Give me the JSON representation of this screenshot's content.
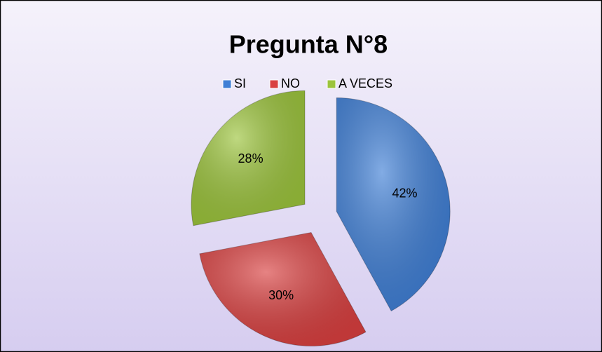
{
  "chart_data": {
    "type": "pie",
    "title": "Pregunta N°8",
    "categories": [
      "SI",
      "NO",
      "A VECES"
    ],
    "values": [
      42,
      30,
      28
    ],
    "value_labels": [
      "42%",
      "30%",
      "28%"
    ],
    "colors": [
      "#3f7fd6",
      "#d94040",
      "#9cc43c"
    ],
    "legend": "top"
  }
}
